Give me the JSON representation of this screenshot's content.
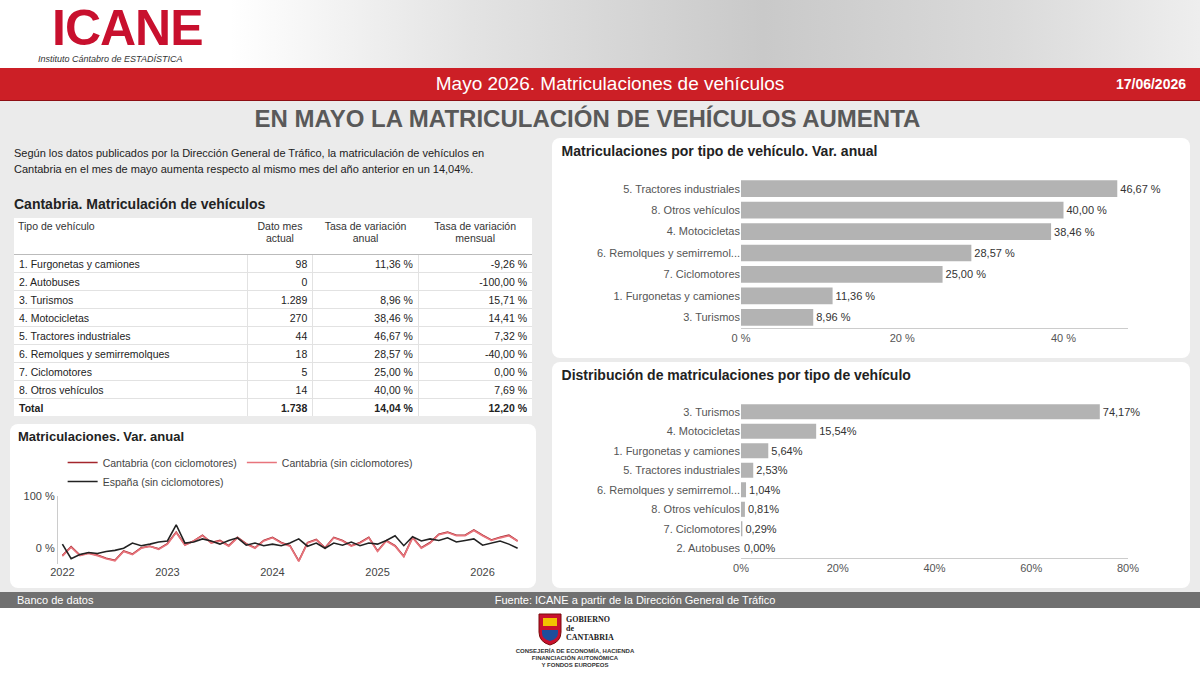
{
  "header": {
    "logo": "ICANE",
    "logo_subtitle": "Instituto Cántabro de ESTADÍSTICA",
    "banner": "Mayo 2026. Matriculaciones de vehículos",
    "date": "17/06/2026",
    "headline": "EN MAYO LA MATRICULACIÓN DE VEHÍCULOS AUMENTA"
  },
  "intro": "Según los datos publicados por la Dirección General de Tráfico, la matriculación de vehículos en Cantabria en el mes de mayo aumenta respecto al mismo mes del año anterior en un 14,04%.",
  "table": {
    "title": "Cantabria. Matriculación de vehículos",
    "columns": [
      "Tipo de vehículo",
      "Dato mes actual",
      "Tasa de variación anual",
      "Tasa de variación mensual"
    ],
    "rows": [
      [
        "1. Furgonetas y camiones",
        "98",
        "11,36 %",
        "-9,26 %"
      ],
      [
        "2. Autobuses",
        "0",
        null,
        "-100,00 %"
      ],
      [
        "3. Turismos",
        "1.289",
        "8,96 %",
        "15,71 %"
      ],
      [
        "4. Motocicletas",
        "270",
        "38,46 %",
        "14,41 %"
      ],
      [
        "5. Tractores industriales",
        "44",
        "46,67 %",
        "7,32 %"
      ],
      [
        "6. Remolques y semirremolques",
        "18",
        "28,57 %",
        "-40,00 %"
      ],
      [
        "7. Ciclomotores",
        "5",
        "25,00 %",
        "0,00 %"
      ],
      [
        "8. Otros vehículos",
        "14",
        "40,00 %",
        "7,69 %"
      ]
    ],
    "total": [
      "Total",
      "1.738",
      "14,04 %",
      "12,20 %"
    ]
  },
  "chart_data": [
    {
      "type": "line",
      "title": "Matriculaciones. Var. anual",
      "categories": [
        "2022",
        null,
        null,
        null,
        null,
        null,
        null,
        null,
        null,
        null,
        null,
        null,
        "2023",
        null,
        null,
        null,
        null,
        null,
        null,
        null,
        null,
        null,
        null,
        null,
        "2024",
        null,
        null,
        null,
        null,
        null,
        null,
        null,
        null,
        null,
        null,
        null,
        "2025",
        null,
        null,
        null,
        null,
        null,
        null,
        null,
        null,
        null,
        null,
        null,
        "2026",
        null,
        null,
        null,
        null
      ],
      "series": [
        {
          "name": "Cantabria (con ciclomotores)",
          "color": "#a4262c",
          "values": [
            -14,
            3,
            -13,
            -9,
            -13,
            -19,
            -23,
            -5,
            -11,
            1,
            4,
            -1,
            9,
            31,
            7,
            14,
            25,
            11,
            15,
            5,
            21,
            9,
            1,
            15,
            21,
            11,
            5,
            -24,
            11,
            17,
            1,
            21,
            15,
            5,
            11,
            21,
            -5,
            15,
            5,
            -15,
            21,
            1,
            11,
            27,
            31,
            25,
            25,
            35,
            25,
            16,
            21,
            25,
            14.04
          ]
        },
        {
          "name": "Cantabria (sin ciclomotores)",
          "color": "#e8747c",
          "values": [
            -15,
            2,
            -14,
            -10,
            -14,
            -20,
            -24,
            -6,
            -12,
            0,
            4,
            -2,
            8,
            30,
            6,
            14,
            24,
            10,
            14,
            4,
            20,
            8,
            0,
            14,
            20,
            10,
            4,
            -25,
            10,
            16,
            0,
            20,
            14,
            4,
            10,
            20,
            -6,
            14,
            4,
            -16,
            20,
            0,
            10,
            26,
            30,
            24,
            24,
            34,
            24,
            15,
            20,
            24,
            14.01
          ]
        },
        {
          "name": "España (sin ciclomotores)",
          "color": "#222222",
          "values": [
            8,
            -20,
            -12,
            -8,
            -10,
            -6,
            -4,
            0,
            10,
            5,
            8,
            12,
            14,
            45,
            10,
            12,
            18,
            14,
            8,
            15,
            20,
            6,
            10,
            5,
            8,
            5,
            10,
            18,
            4,
            10,
            0,
            10,
            6,
            12,
            5,
            10,
            8,
            15,
            24,
            5,
            22,
            14,
            18,
            15,
            20,
            12,
            15,
            18,
            6,
            10,
            14,
            8,
            0
          ]
        }
      ],
      "ylim": [
        -30,
        100
      ],
      "yticks": [
        {
          "value": 0,
          "label": "0 %"
        },
        {
          "value": 100,
          "label": "100 %"
        }
      ],
      "legend": "top-left",
      "grid": false
    },
    {
      "type": "bar",
      "orientation": "horizontal",
      "title": "Matriculaciones por tipo de vehículo. Var. anual",
      "categories": [
        "5. Tractores industriales",
        "8. Otros vehículos",
        "4. Motocicletas",
        "6. Remolques y semirremol...",
        "7. Ciclomotores",
        "1. Furgonetas y camiones",
        "3. Turismos"
      ],
      "values": [
        46.67,
        40.0,
        38.46,
        28.57,
        25.0,
        11.36,
        8.96
      ],
      "value_labels": [
        "46,67 %",
        "40,00 %",
        "38,46 %",
        "28,57 %",
        "25,00 %",
        "11,36 %",
        "8,96 %"
      ],
      "data_labels": true,
      "color": "#b3b3b3",
      "xlim": [
        0,
        48
      ],
      "xticks": [
        {
          "value": 0,
          "label": "0 %"
        },
        {
          "value": 20,
          "label": "20 %"
        },
        {
          "value": 40,
          "label": "40 %"
        }
      ],
      "grid": false
    },
    {
      "type": "bar",
      "orientation": "horizontal",
      "title": "Distribución de matriculaciones por tipo de vehículo",
      "categories": [
        "3. Turismos",
        "4. Motocicletas",
        "1. Furgonetas y camiones",
        "5. Tractores industriales",
        "6. Remolques y semirremol...",
        "8. Otros vehículos",
        "7. Ciclomotores",
        "2. Autobuses"
      ],
      "values": [
        74.17,
        15.54,
        5.64,
        2.53,
        1.04,
        0.81,
        0.29,
        0.0
      ],
      "value_labels": [
        "74,17%",
        "15,54%",
        "5,64%",
        "2,53%",
        "1,04%",
        "0,81%",
        "0,29%",
        "0,00%"
      ],
      "data_labels": true,
      "color": "#b3b3b3",
      "xlim": [
        0,
        80
      ],
      "xticks": [
        {
          "value": 0,
          "label": "0%"
        },
        {
          "value": 20,
          "label": "20%"
        },
        {
          "value": 40,
          "label": "40%"
        },
        {
          "value": 60,
          "label": "60%"
        },
        {
          "value": 80,
          "label": "80%"
        }
      ],
      "grid": false
    }
  ],
  "footer": {
    "left": "Banco de datos",
    "source": "Fuente: ICANE a partir de la Dirección General de Tráfico",
    "government": [
      "GOBIERNO",
      "de",
      "CANTABRIA"
    ],
    "department": [
      "CONSEJERÍA DE ECONOMÍA, HACIENDA",
      "FINANCIACIÓN AUTONÓMICA",
      "Y FONDOS EUROPEOS"
    ]
  }
}
